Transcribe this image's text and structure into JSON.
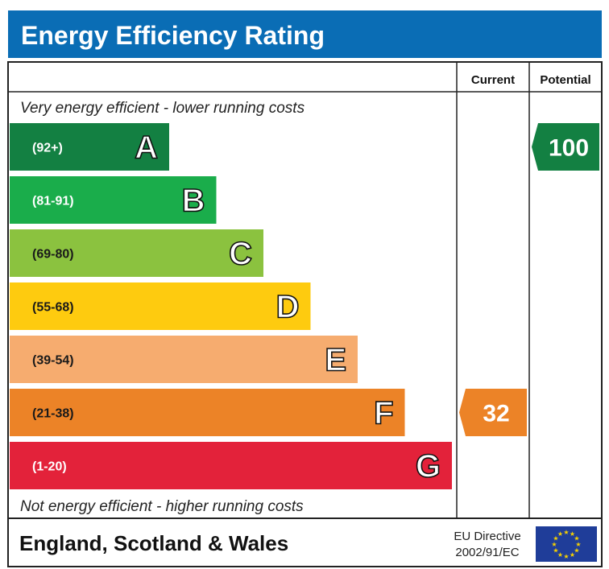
{
  "title": "Energy Efficiency Rating",
  "columns": {
    "current": "Current",
    "potential": "Potential"
  },
  "top_note": "Very energy efficient - lower running costs",
  "bottom_note": "Not energy efficient - higher running costs",
  "footer": {
    "region": "England, Scotland & Wales",
    "directive_line1": "EU Directive",
    "directive_line2": "2002/91/EC"
  },
  "colors": {
    "header_blue": "#0a6db5",
    "A": "#138042",
    "B": "#1aad4b",
    "C": "#8bc23f",
    "D": "#fecb0f",
    "E": "#f6ac6f",
    "F": "#ec8327",
    "G": "#e3223a",
    "eu_flag": "#1f3d99",
    "eu_stars": "#f6d100"
  },
  "chart_data": {
    "type": "bar",
    "title": "Energy Efficiency Rating",
    "bands": [
      {
        "letter": "A",
        "range": "(92+)"
      },
      {
        "letter": "B",
        "range": "(81-91)"
      },
      {
        "letter": "C",
        "range": "(69-80)"
      },
      {
        "letter": "D",
        "range": "(55-68)"
      },
      {
        "letter": "E",
        "range": "(39-54)"
      },
      {
        "letter": "F",
        "range": "(21-38)"
      },
      {
        "letter": "G",
        "range": "(1-20)"
      }
    ],
    "current": {
      "value": 32,
      "band": "F"
    },
    "potential": {
      "value": 100,
      "band": "A"
    }
  }
}
